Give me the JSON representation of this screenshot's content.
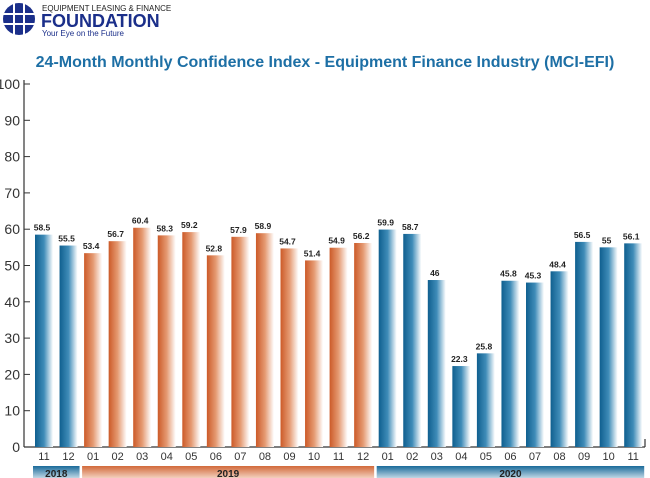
{
  "logo": {
    "top": "EQUIPMENT LEASING & FINANCE",
    "name": "FOUNDATION",
    "tagline": "Your Eye on the Future"
  },
  "chart_data": {
    "type": "bar",
    "title": "24-Month Monthly Confidence Index - Equipment Finance Industry (MCI-EFI)",
    "ylim": [
      0,
      100
    ],
    "yticks": [
      0,
      10,
      20,
      30,
      40,
      50,
      60,
      70,
      80,
      90,
      100
    ],
    "categories": [
      "11",
      "12",
      "01",
      "02",
      "03",
      "04",
      "05",
      "06",
      "07",
      "08",
      "09",
      "10",
      "11",
      "12",
      "01",
      "02",
      "03",
      "04",
      "05",
      "06",
      "07",
      "08",
      "09",
      "10",
      "11"
    ],
    "years": [
      "2018",
      "2018",
      "2019",
      "2019",
      "2019",
      "2019",
      "2019",
      "2019",
      "2019",
      "2019",
      "2019",
      "2019",
      "2019",
      "2019",
      "2020",
      "2020",
      "2020",
      "2020",
      "2020",
      "2020",
      "2020",
      "2020",
      "2020",
      "2020",
      "2020"
    ],
    "values": [
      58.5,
      55.5,
      53.4,
      56.7,
      60.4,
      58.3,
      59.2,
      52.8,
      57.9,
      58.9,
      54.7,
      51.4,
      54.9,
      56.2,
      59.9,
      58.7,
      46,
      22.3,
      25.8,
      45.8,
      45.3,
      48.4,
      56.5,
      55,
      56.1
    ],
    "labels": [
      "58.5",
      "55.5",
      "53.4",
      "56.7",
      "60.4",
      "58.3",
      "59.2",
      "52.8",
      "57.9",
      "58.9",
      "54.7",
      "51.4",
      "54.9",
      "56.2",
      "59.9",
      "58.7",
      "46",
      "22.3",
      "25.8",
      "45.8",
      "45.3",
      "48.4",
      "56.5",
      "55",
      "56.1"
    ],
    "year_groups": [
      {
        "label": "2018",
        "start": 0,
        "end": 1,
        "color": "#1a6a9a"
      },
      {
        "label": "2019",
        "start": 2,
        "end": 13,
        "color": "#d2693a"
      },
      {
        "label": "2020",
        "start": 14,
        "end": 24,
        "color": "#1a6a9a"
      }
    ]
  }
}
